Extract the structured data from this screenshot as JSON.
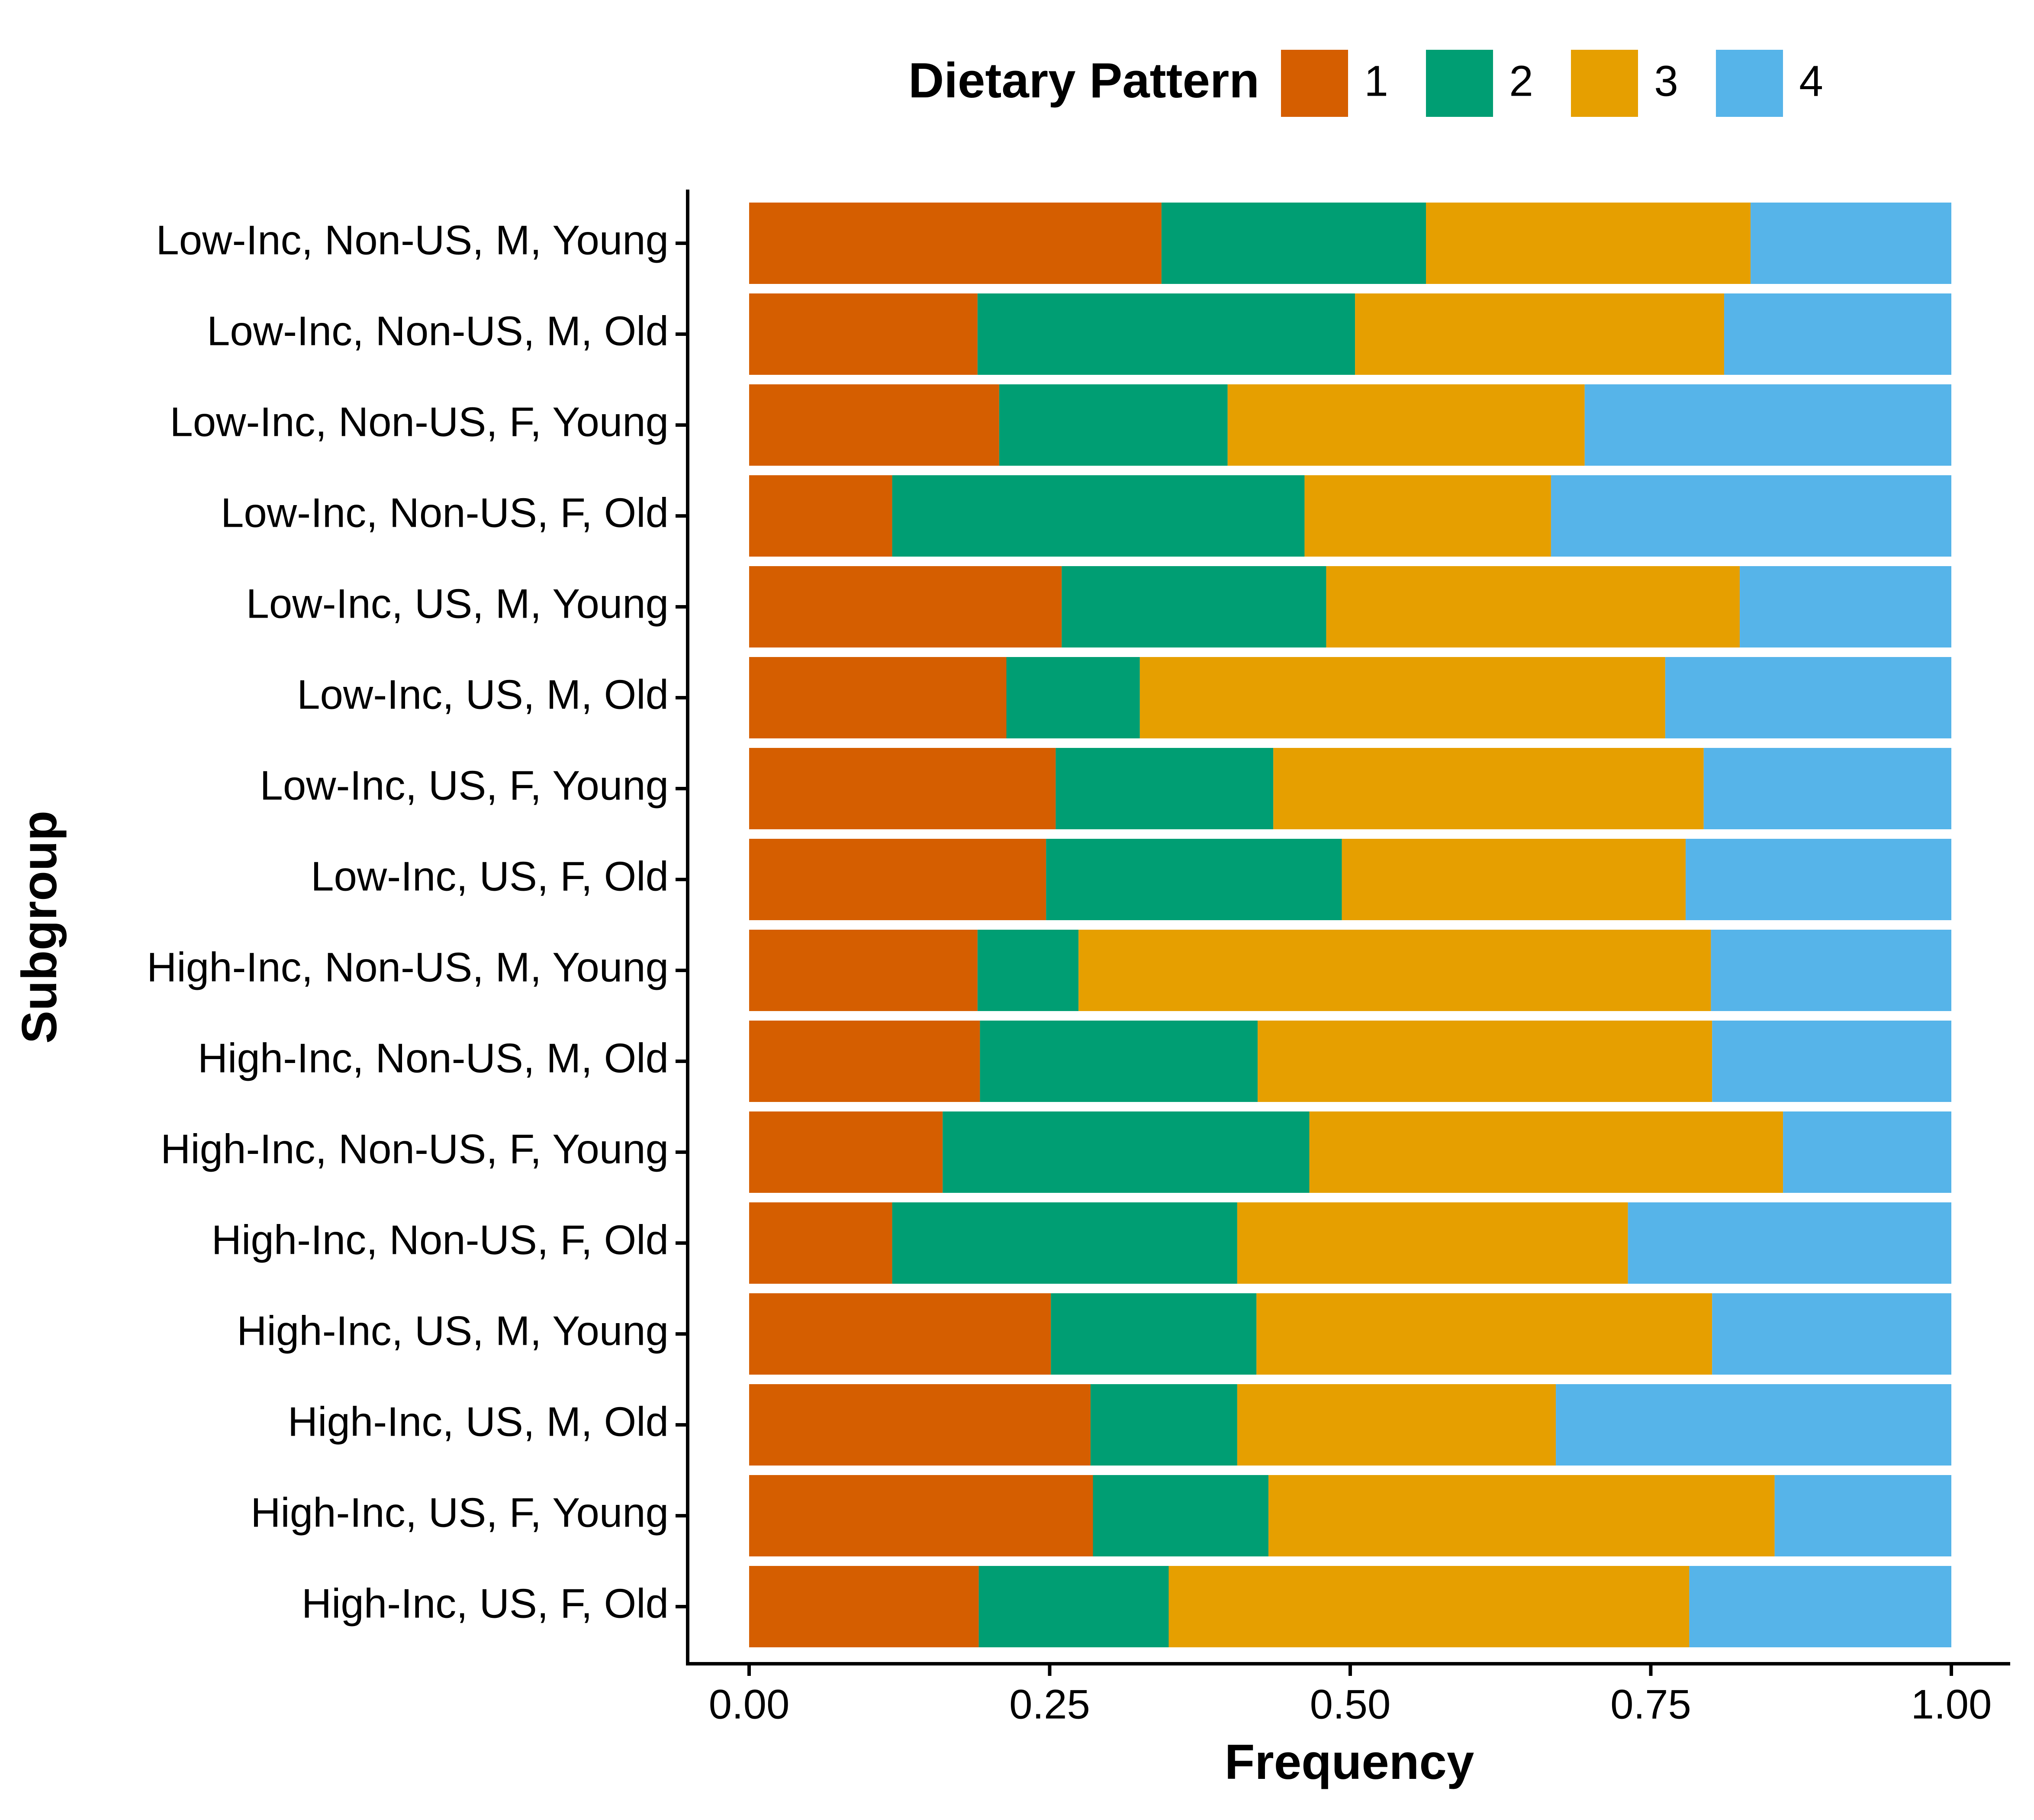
{
  "chart_data": {
    "type": "bar",
    "orientation": "horizontal",
    "stacked": true,
    "xlabel": "Frequency",
    "ylabel": "Subgroup",
    "xlim": [
      0,
      1
    ],
    "xticks": [
      "0.00",
      "0.25",
      "0.50",
      "0.75",
      "1.00"
    ],
    "tick_values": [
      0,
      0.25,
      0.5,
      0.75,
      1
    ],
    "grid": false,
    "legend": {
      "title": "Dietary Pattern",
      "position": "top"
    },
    "categories": [
      "Low-Inc, Non-US, M, Young",
      "Low-Inc, Non-US, M, Old",
      "Low-Inc, Non-US, F, Young",
      "Low-Inc, Non-US, F, Old",
      "Low-Inc, US, M, Young",
      "Low-Inc, US, M, Old",
      "Low-Inc, US, F, Young",
      "Low-Inc, US, F, Old",
      "High-Inc, Non-US, M, Young",
      "High-Inc, Non-US, M, Old",
      "High-Inc, Non-US, F, Young",
      "High-Inc, Non-US, F, Old",
      "High-Inc, US, M, Young",
      "High-Inc, US, M, Old",
      "High-Inc, US, F, Young",
      "High-Inc, US, F, Old"
    ],
    "series": [
      {
        "name": "1",
        "color": "#D55E00",
        "values": [
          0.343,
          0.19,
          0.208,
          0.119,
          0.26,
          0.214,
          0.255,
          0.247,
          0.19,
          0.192,
          0.161,
          0.119,
          0.251,
          0.284,
          0.286,
          0.191
        ]
      },
      {
        "name": "2",
        "color": "#009E73",
        "values": [
          0.22,
          0.314,
          0.19,
          0.343,
          0.22,
          0.111,
          0.181,
          0.246,
          0.084,
          0.231,
          0.305,
          0.287,
          0.171,
          0.122,
          0.146,
          0.158
        ]
      },
      {
        "name": "3",
        "color": "#E69F00",
        "values": [
          0.27,
          0.307,
          0.297,
          0.205,
          0.344,
          0.437,
          0.358,
          0.286,
          0.526,
          0.378,
          0.394,
          0.325,
          0.379,
          0.265,
          0.421,
          0.433
        ]
      },
      {
        "name": "4",
        "color": "#56B4E9",
        "values": [
          0.167,
          0.189,
          0.305,
          0.333,
          0.176,
          0.238,
          0.206,
          0.221,
          0.2,
          0.199,
          0.14,
          0.269,
          0.199,
          0.329,
          0.147,
          0.218
        ]
      }
    ]
  }
}
